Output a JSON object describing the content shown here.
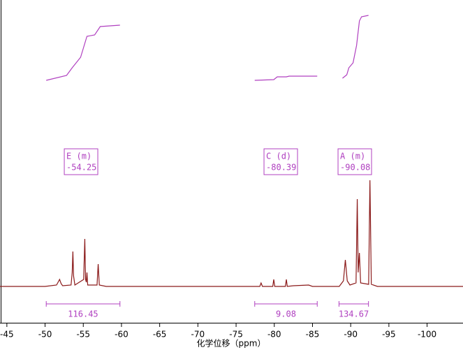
{
  "chart_data": {
    "type": "nmr",
    "x_label": "化学位移（ppm）",
    "xlim": [
      -44.1,
      -104.7
    ],
    "xticks": [
      -45,
      -50,
      -55,
      -60,
      -65,
      -70,
      -75,
      -80,
      -85,
      -90,
      -95,
      -100
    ],
    "ylim": [
      -52,
      410
    ],
    "series": [
      {
        "color": "#8b1a1a",
        "x": [
          -44.1,
          -50.0,
          -51.5,
          -51.8,
          -51.9,
          -52.1,
          -52.3,
          -53.4,
          -53.55,
          -53.64,
          -53.73,
          -53.9,
          -55.05,
          -55.2,
          -55.3,
          -55.4,
          -55.48,
          -55.58,
          -56.8,
          -56.95,
          -57.1,
          -58.0,
          -60,
          -65,
          -70,
          -75,
          -78.1,
          -78.27,
          -78.45,
          -79.8,
          -79.93,
          -80.06,
          -81.45,
          -81.58,
          -81.7,
          -82.5,
          -84.5,
          -85,
          -88.5,
          -89.05,
          -89.3,
          -89.55,
          -89.9,
          -90.7,
          -90.86,
          -90.98,
          -91.14,
          -91.3,
          -92.35,
          -92.52,
          -92.7,
          -93.5,
          -104.7
        ],
        "values": [
          0,
          0,
          2,
          8,
          10,
          4,
          1,
          2,
          20,
          50,
          15,
          2,
          10,
          68,
          10,
          6,
          20,
          2,
          2,
          32,
          2,
          0,
          0,
          0,
          0,
          0,
          0,
          5,
          0,
          0,
          10,
          0,
          0,
          10,
          0,
          1,
          2,
          0,
          0,
          8,
          38,
          8,
          2,
          5,
          125,
          20,
          48,
          5,
          3,
          152,
          3,
          0,
          0
        ]
      }
    ],
    "integral_curves": [
      {
        "color": "#b040c0",
        "x": [
          -50.15,
          -52.81,
          -53.55,
          -54.65,
          -55.48,
          -56.49,
          -57.22,
          -59.8
        ],
        "values": [
          295,
          302,
          313,
          328,
          358,
          360,
          372,
          374
        ]
      },
      {
        "color": "#b040c0",
        "x": [
          -77.44,
          -79.93,
          -80.39,
          -81.58,
          -81.95,
          -85.62
        ],
        "values": [
          295,
          296,
          300,
          300,
          301,
          301
        ]
      },
      {
        "color": "#b040c0",
        "x": [
          -88.93,
          -89.49,
          -89.76,
          -90.31,
          -90.77,
          -91.14,
          -91.42,
          -92.33
        ],
        "values": [
          298,
          303,
          313,
          320,
          345,
          380,
          386,
          388
        ]
      }
    ],
    "integrals": [
      {
        "from": -50.15,
        "to": -59.8,
        "value": 116.45
      },
      {
        "from": -77.44,
        "to": -85.62,
        "value": 9.08
      },
      {
        "from": -88.47,
        "to": -92.33,
        "value": 134.67
      }
    ],
    "peaks": [
      {
        "label": "E (m)",
        "shift": -54.25
      },
      {
        "label": "C (d)",
        "shift": -80.39
      },
      {
        "label": "A (m)",
        "shift": -90.08
      }
    ]
  }
}
